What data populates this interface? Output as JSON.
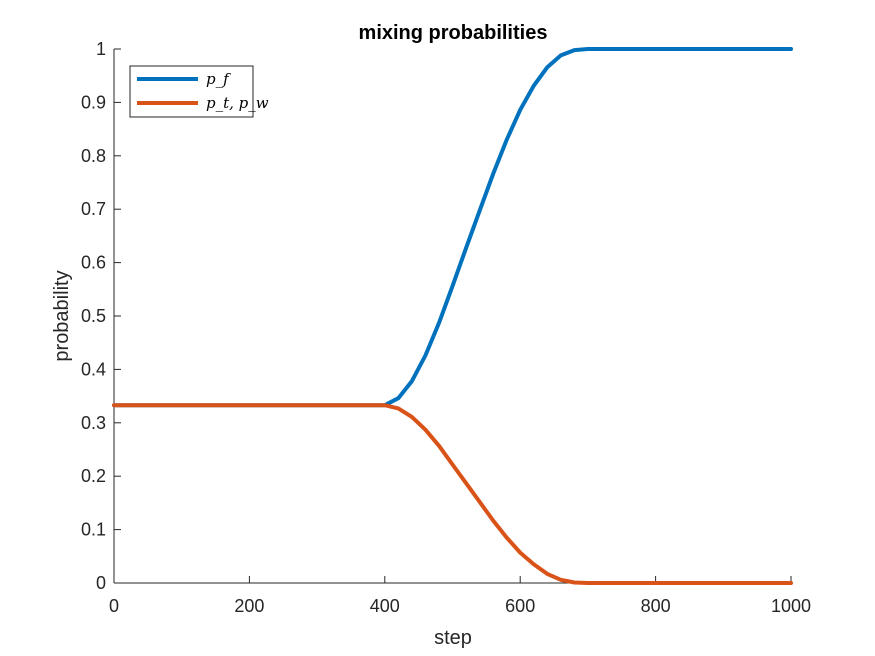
{
  "chart_data": {
    "type": "line",
    "title": "mixing probabilities",
    "xlabel": "step",
    "ylabel": "probability",
    "xlim": [
      0,
      1000
    ],
    "ylim": [
      0,
      1
    ],
    "xticks": [
      0,
      200,
      400,
      600,
      800,
      1000
    ],
    "yticks": [
      0,
      0.1,
      0.2,
      0.3,
      0.4,
      0.5,
      0.6,
      0.7,
      0.8,
      0.9,
      1
    ],
    "grid": false,
    "legend_position": "top-left",
    "series": [
      {
        "name": "p_f",
        "color": "#0072BD",
        "x": [
          0,
          100,
          200,
          300,
          400,
          420,
          440,
          460,
          480,
          500,
          520,
          540,
          560,
          580,
          600,
          620,
          640,
          660,
          680,
          700,
          800,
          900,
          1000
        ],
        "y": [
          0.333,
          0.333,
          0.333,
          0.333,
          0.333,
          0.346,
          0.378,
          0.426,
          0.487,
          0.556,
          0.627,
          0.697,
          0.766,
          0.83,
          0.886,
          0.931,
          0.966,
          0.988,
          0.998,
          1.0,
          1.0,
          1.0,
          1.0
        ]
      },
      {
        "name": "p_t, p_w",
        "color": "#D95319",
        "x": [
          0,
          100,
          200,
          300,
          400,
          420,
          440,
          460,
          480,
          500,
          520,
          540,
          560,
          580,
          600,
          620,
          640,
          660,
          680,
          700,
          800,
          900,
          1000
        ],
        "y": [
          0.333,
          0.333,
          0.333,
          0.333,
          0.333,
          0.327,
          0.311,
          0.287,
          0.257,
          0.222,
          0.187,
          0.152,
          0.117,
          0.085,
          0.057,
          0.035,
          0.017,
          0.006,
          0.001,
          0.0,
          0.0,
          0.0,
          0.0
        ]
      }
    ]
  }
}
